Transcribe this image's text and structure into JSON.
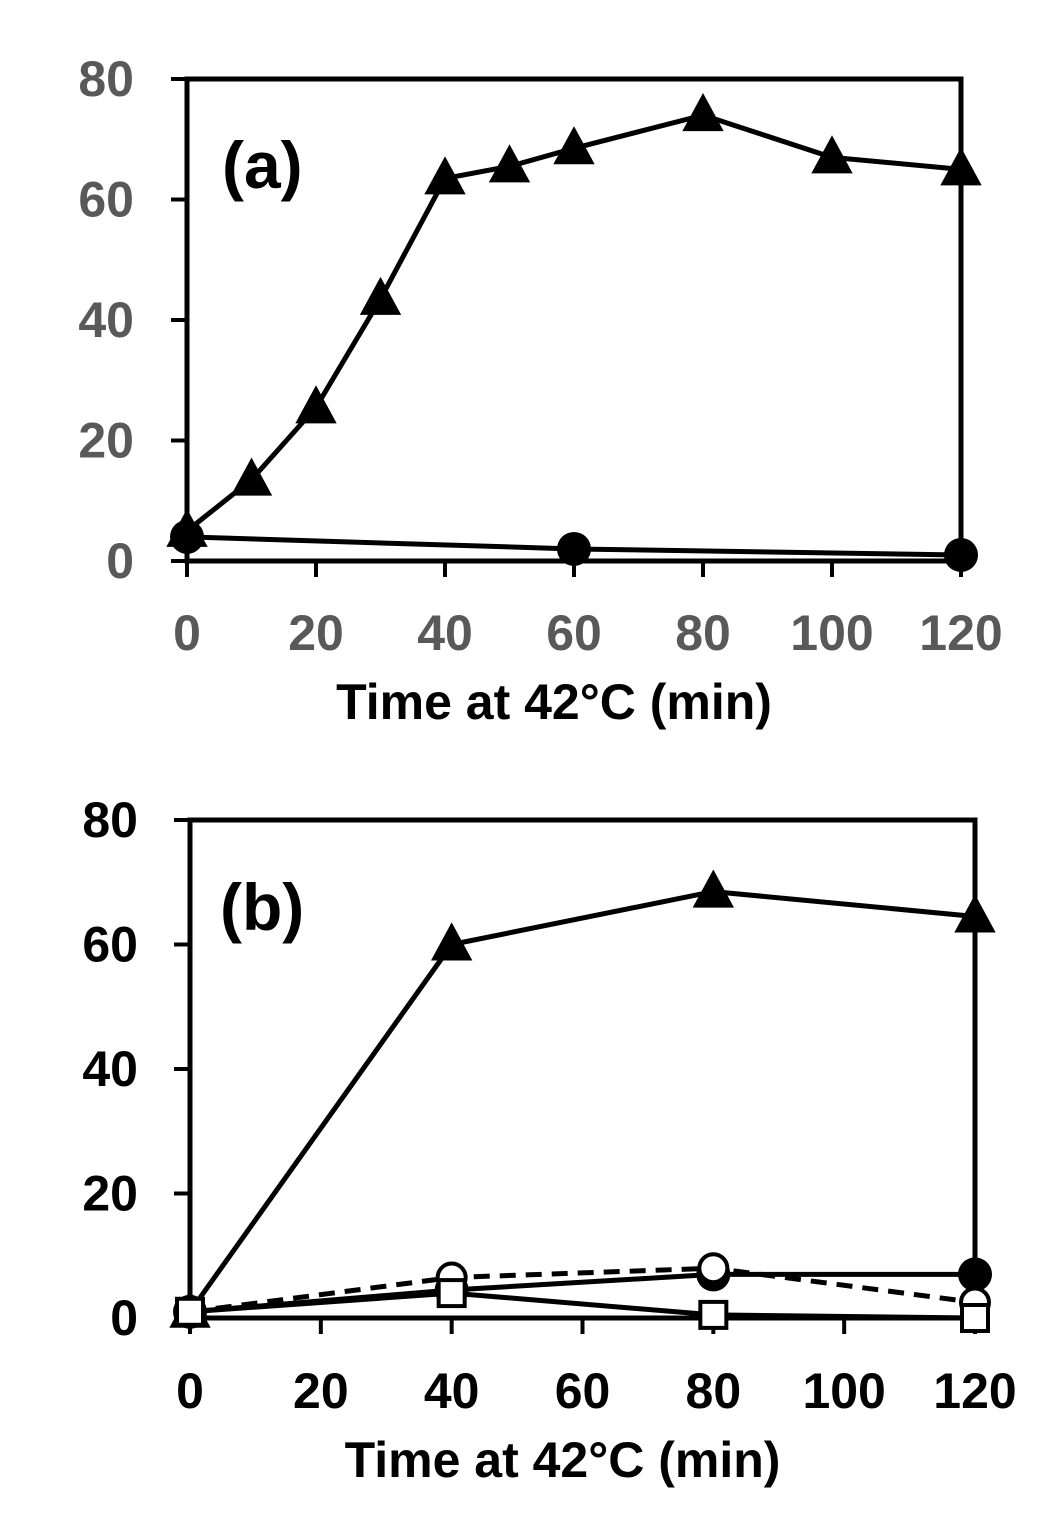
{
  "chart_data": [
    {
      "type": "line",
      "panel_label": "(a)",
      "xlabel": "Time at 42°C (min)",
      "ylabel": "",
      "xlim": [
        0,
        120
      ],
      "ylim": [
        0,
        80
      ],
      "xticks": [
        0,
        20,
        40,
        60,
        80,
        100,
        120
      ],
      "yticks": [
        0,
        20,
        40,
        60,
        80
      ],
      "tick_color": "#595959",
      "series": [
        {
          "marker": "filled-triangle",
          "line_style": "solid",
          "color": "#000000",
          "x": [
            0,
            10,
            20,
            30,
            40,
            50,
            60,
            80,
            100,
            120
          ],
          "y": [
            5,
            13.5,
            25.5,
            43.5,
            63.5,
            65.5,
            68.5,
            74,
            67,
            65
          ]
        },
        {
          "marker": "filled-circle",
          "line_style": "solid",
          "color": "#000000",
          "x": [
            0,
            60,
            120
          ],
          "y": [
            4,
            2,
            1
          ]
        }
      ]
    },
    {
      "type": "line",
      "panel_label": "(b)",
      "xlabel": "Time at 42°C (min)",
      "ylabel": "",
      "xlim": [
        0,
        120
      ],
      "ylim": [
        0,
        80
      ],
      "xticks": [
        0,
        20,
        40,
        60,
        80,
        100,
        120
      ],
      "yticks": [
        0,
        20,
        40,
        60,
        80
      ],
      "tick_color": "#000000",
      "series": [
        {
          "marker": "filled-triangle",
          "line_style": "solid",
          "color": "#000000",
          "x": [
            0,
            40,
            80,
            120
          ],
          "y": [
            1,
            60,
            68.5,
            64.5
          ]
        },
        {
          "marker": "filled-circle",
          "line_style": "solid",
          "color": "#000000",
          "x": [
            0,
            40,
            80,
            120
          ],
          "y": [
            1,
            4.5,
            7,
            7
          ]
        },
        {
          "marker": "open-circle",
          "line_style": "dashed",
          "color": "#000000",
          "x": [
            0,
            40,
            80,
            120
          ],
          "y": [
            1,
            6.5,
            8,
            2.5
          ]
        },
        {
          "marker": "open-square",
          "line_style": "solid",
          "color": "#000000",
          "x": [
            0,
            40,
            80,
            120
          ],
          "y": [
            1,
            4,
            0.5,
            0
          ]
        }
      ]
    }
  ]
}
